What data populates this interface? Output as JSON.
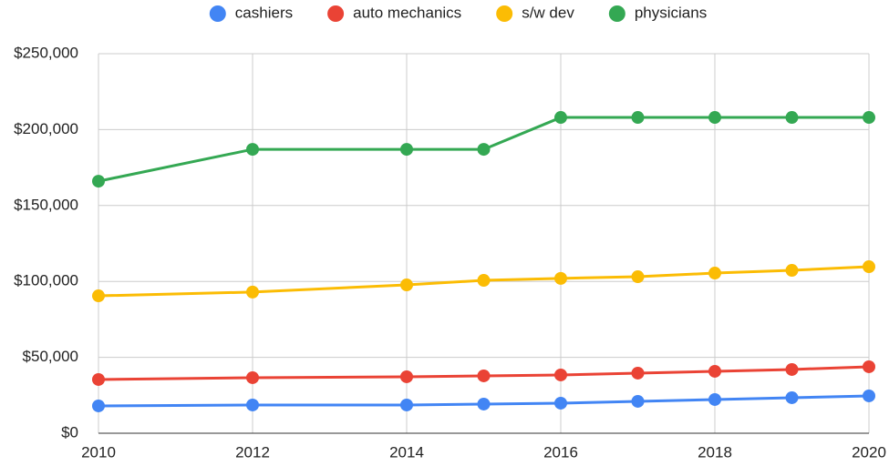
{
  "chart_data": {
    "type": "line",
    "x": [
      2010,
      2012,
      2014,
      2015,
      2016,
      2017,
      2018,
      2019,
      2020
    ],
    "series": [
      {
        "name": "cashiers",
        "color": "#4285f4",
        "values": [
          18000,
          18600,
          18600,
          19200,
          19800,
          21000,
          22200,
          23400,
          24600
        ]
      },
      {
        "name": "auto mechanics",
        "color": "#ea4335",
        "values": [
          35400,
          36600,
          37200,
          37800,
          38400,
          39600,
          40800,
          42000,
          43800
        ]
      },
      {
        "name": "s/w dev",
        "color": "#fbbc04",
        "values": [
          90500,
          93000,
          97700,
          100700,
          102000,
          103100,
          105500,
          107300,
          109700
        ]
      },
      {
        "name": "physicians",
        "color": "#34a853",
        "values": [
          166000,
          187000,
          187000,
          187000,
          208000,
          208000,
          208000,
          208000,
          208000
        ]
      }
    ],
    "xlim": [
      2010,
      2020
    ],
    "xticks": [
      2010,
      2012,
      2014,
      2016,
      2018,
      2020
    ],
    "ylim": [
      0,
      250000
    ],
    "yticks": [
      {
        "value": 0,
        "label": "$0"
      },
      {
        "value": 50000,
        "label": "$50,000"
      },
      {
        "value": 100000,
        "label": "$100,000"
      },
      {
        "value": 150000,
        "label": "$150,000"
      },
      {
        "value": 200000,
        "label": "$200,000"
      },
      {
        "value": 250000,
        "label": "$250,000"
      }
    ],
    "grid": true,
    "legend": "top"
  }
}
